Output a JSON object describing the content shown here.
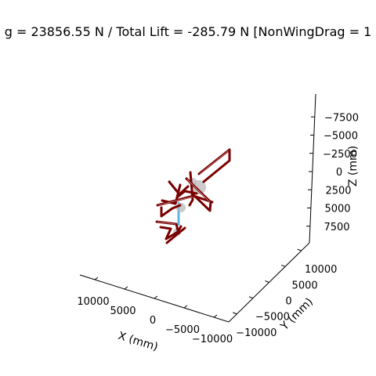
{
  "figure": {
    "title": "g = 23856.55 N / Total Lift = -285.79 N [NonWingDrag = 1"
  },
  "chart_data": {
    "type": "3d-wireframe",
    "title": "g = 23856.55 N / Total Lift = -285.79 N [NonWingDrag = 1",
    "grid": false,
    "axes": {
      "x": {
        "label": "X (mm)",
        "ticks": [
          10000,
          5000,
          0,
          -5000,
          -10000
        ],
        "tick_labels": [
          "10000",
          "5000",
          "0",
          "−5000",
          "−10000"
        ],
        "range": [
          12500,
          -12500
        ]
      },
      "y": {
        "label": "Y (mm)",
        "ticks": [
          -10000,
          -5000,
          0,
          5000,
          10000
        ],
        "tick_labels": [
          "−10000",
          "−5000",
          "0",
          "5000",
          "10000"
        ],
        "range": [
          -12500,
          12500
        ]
      },
      "z": {
        "label": "Z (mm)",
        "ticks": [
          -7500,
          -5000,
          -2500,
          0,
          2500,
          5000,
          7500
        ],
        "tick_labels": [
          "−7500",
          "−5000",
          "−2500",
          "0",
          "2500",
          "5000",
          "7500"
        ],
        "range": [
          -10000,
          10000
        ],
        "inverted": true
      }
    },
    "series": [
      {
        "kind": "structure-members",
        "color": "#7a0000"
      },
      {
        "kind": "support-strut",
        "color": "#5ab4e5"
      },
      {
        "kind": "nodes",
        "color": "#b9b9b9"
      }
    ]
  }
}
